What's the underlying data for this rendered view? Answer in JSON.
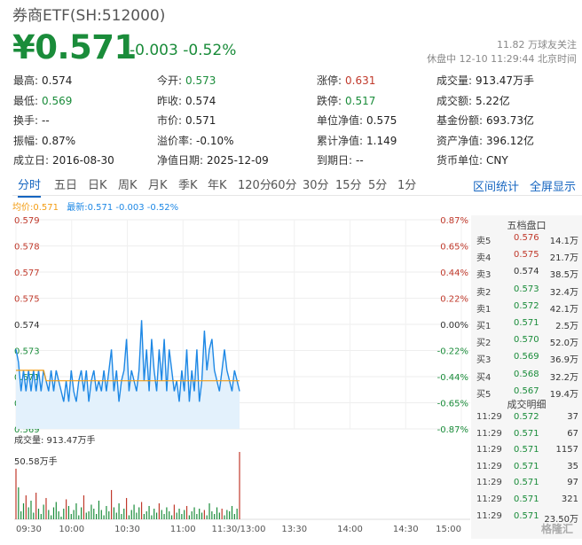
{
  "header": {
    "title": "券商ETF(SH:512000)",
    "price": "¥0.571",
    "change": "-0.003 -0.52%",
    "followers": "11.82 万球友关注",
    "status": "休盘中 12-10 11:29:44 北京时间"
  },
  "stats": {
    "rows": [
      [
        {
          "label": "最高:",
          "value": "0.574",
          "color": ""
        },
        {
          "label": "今开:",
          "value": "0.573",
          "color": "down"
        },
        {
          "label": "涨停:",
          "value": "0.631",
          "color": "up"
        },
        {
          "label": "成交量:",
          "value": "913.47万手",
          "color": ""
        }
      ],
      [
        {
          "label": "最低:",
          "value": "0.569",
          "color": "down"
        },
        {
          "label": "昨收:",
          "value": "0.574",
          "color": ""
        },
        {
          "label": "跌停:",
          "value": "0.517",
          "color": "down"
        },
        {
          "label": "成交额:",
          "value": "5.22亿",
          "color": ""
        }
      ],
      [
        {
          "label": "换手:",
          "value": "--",
          "color": ""
        },
        {
          "label": "市价:",
          "value": "0.571",
          "color": ""
        },
        {
          "label": "单位净值:",
          "value": "0.575",
          "color": ""
        },
        {
          "label": "基金份额:",
          "value": "693.73亿",
          "color": ""
        }
      ],
      [
        {
          "label": "振幅:",
          "value": "0.87%",
          "color": ""
        },
        {
          "label": "溢价率:",
          "value": "-0.10%",
          "color": ""
        },
        {
          "label": "累计净值:",
          "value": "1.149",
          "color": ""
        },
        {
          "label": "资产净值:",
          "value": "396.12亿",
          "color": ""
        }
      ],
      [
        {
          "label": "成立日:",
          "value": "2016-08-30",
          "color": ""
        },
        {
          "label": "净值日期:",
          "value": "2025-12-09",
          "color": ""
        },
        {
          "label": "到期日:",
          "value": "--",
          "color": ""
        },
        {
          "label": "货币单位:",
          "value": "CNY",
          "color": ""
        }
      ]
    ]
  },
  "tabs": [
    "分时",
    "五日",
    "日K",
    "周K",
    "月K",
    "季K",
    "年K",
    "120分",
    "60分",
    "30分",
    "15分",
    "5分",
    "1分"
  ],
  "active_tab": 0,
  "tools": {
    "range_stats": "区间统计",
    "fullscreen": "全屏显示"
  },
  "legend": {
    "avg_label": "均价:",
    "avg_value": "0.571",
    "last_label": "最新:",
    "last_value": "0.571 -0.003 -0.52%"
  },
  "colors": {
    "up": "#c0392b",
    "down": "#1a8c3a",
    "line": "#1e88e5",
    "avg": "#f39c12",
    "link": "#1565c0"
  },
  "chart_data": {
    "type": "line",
    "price_ticks": [
      "0.579",
      "0.578",
      "0.577",
      "0.575",
      "0.574",
      "0.573",
      "0.571",
      "0.570",
      "0.569"
    ],
    "pct_ticks": [
      "0.87%",
      "0.65%",
      "0.44%",
      "0.22%",
      "0.00%",
      "-0.22%",
      "-0.44%",
      "-0.65%",
      "-0.87%"
    ],
    "ylim": [
      0.569,
      0.579
    ],
    "prev_close": 0.574,
    "x_ticks": [
      "09:30",
      "10:00",
      "10:30",
      "11:00",
      "11:30/13:00",
      "13:30",
      "14:00",
      "14:30",
      "15:00"
    ],
    "series": [
      {
        "name": "最新",
        "values": [
          0.5728,
          0.5722,
          0.5708,
          0.5718,
          0.5708,
          0.5718,
          0.5708,
          0.5718,
          0.5708,
          0.5718,
          0.5708,
          0.5718,
          0.5713,
          0.5708,
          0.5718,
          0.5708,
          0.5718,
          0.5713,
          0.5708,
          0.5703,
          0.5713,
          0.5703,
          0.5718,
          0.5708,
          0.5703,
          0.5713,
          0.5718,
          0.5708,
          0.5718,
          0.5703,
          0.5713,
          0.5718,
          0.5708,
          0.5713,
          0.5708,
          0.5718,
          0.5708,
          0.5718,
          0.5728,
          0.5708,
          0.5718,
          0.5703,
          0.5713,
          0.5718,
          0.5733,
          0.5708,
          0.5718,
          0.5713,
          0.5708,
          0.5718,
          0.5742,
          0.5713,
          0.5728,
          0.5708,
          0.5733,
          0.5718,
          0.5708,
          0.5728,
          0.5713,
          0.5733,
          0.5708,
          0.5728,
          0.5718,
          0.5708,
          0.5713,
          0.5703,
          0.5718,
          0.5708,
          0.5728,
          0.5703,
          0.5718,
          0.5708,
          0.5728,
          0.5703,
          0.5713,
          0.5737,
          0.5718,
          0.5728,
          0.5733,
          0.5718,
          0.5713,
          0.5708,
          0.5718,
          0.5728,
          0.5718,
          0.5713,
          0.5708,
          0.5718,
          0.5713,
          0.5708
        ]
      },
      {
        "name": "均价",
        "values": [
          0.5718,
          0.5718,
          0.5718,
          0.5718,
          0.5718,
          0.5718,
          0.5718,
          0.5718,
          0.5718,
          0.5718,
          0.5718,
          0.5718,
          0.5713,
          0.5713,
          0.5713,
          0.5713,
          0.5713,
          0.5713,
          0.5713,
          0.5713,
          0.5713,
          0.5713,
          0.5713,
          0.5713,
          0.5713,
          0.5713,
          0.5713,
          0.5713,
          0.5713,
          0.5713,
          0.5713,
          0.5713,
          0.5713,
          0.5713,
          0.5713,
          0.5713,
          0.5713,
          0.5713,
          0.5713,
          0.5713,
          0.5713,
          0.5713,
          0.5713,
          0.5713,
          0.5713,
          0.5713,
          0.5713,
          0.5713,
          0.5713,
          0.5713,
          0.5713,
          0.5713,
          0.5713,
          0.5713,
          0.5713,
          0.5713,
          0.5713,
          0.5713,
          0.5713,
          0.5713,
          0.5713,
          0.5713,
          0.5713,
          0.5713,
          0.5713,
          0.5713,
          0.5713,
          0.5713,
          0.5713,
          0.5713,
          0.5713,
          0.5713,
          0.5713,
          0.5713,
          0.5713,
          0.5713,
          0.5713,
          0.5713,
          0.5713,
          0.5713,
          0.5713,
          0.5713,
          0.5713,
          0.5713,
          0.5713,
          0.5713,
          0.5713,
          0.5713,
          0.5713,
          0.5713
        ]
      }
    ],
    "volume_label": "成交量: 913.47万手",
    "volume_max_label": "50.58万手",
    "volume_max": 50.58,
    "volume": [
      38,
      24,
      6,
      12,
      18,
      9,
      14,
      5,
      20,
      8,
      4,
      11,
      16,
      7,
      3,
      9,
      13,
      6,
      2,
      8,
      15,
      10,
      4,
      7,
      12,
      3,
      9,
      18,
      5,
      6,
      11,
      8,
      4,
      14,
      7,
      3,
      10,
      6,
      22,
      9,
      5,
      12,
      4,
      8,
      16,
      3,
      7,
      11,
      5,
      9,
      13,
      4,
      6,
      10,
      3,
      8,
      5,
      12,
      7,
      4,
      9,
      6,
      3,
      11,
      5,
      8,
      4,
      7,
      10,
      3,
      6,
      9,
      4,
      8,
      5,
      7,
      3,
      12,
      6,
      4,
      9,
      5,
      8,
      3,
      7,
      6,
      10,
      4,
      8,
      50.58
    ],
    "volume_up_index": [
      0,
      4,
      8,
      12,
      20,
      27,
      38,
      44,
      50,
      57,
      63,
      68,
      75,
      82,
      89
    ]
  },
  "orderbook": {
    "title": "五档盘口",
    "asks": [
      {
        "label": "卖5",
        "price": "0.576",
        "vol": "14.1万",
        "color": "up"
      },
      {
        "label": "卖4",
        "price": "0.575",
        "vol": "21.7万",
        "color": "up"
      },
      {
        "label": "卖3",
        "price": "0.574",
        "vol": "38.5万",
        "color": ""
      },
      {
        "label": "卖2",
        "price": "0.573",
        "vol": "32.4万",
        "color": "down"
      },
      {
        "label": "卖1",
        "price": "0.572",
        "vol": "42.1万",
        "color": "down"
      }
    ],
    "bids": [
      {
        "label": "买1",
        "price": "0.571",
        "vol": "2.5万",
        "color": "down"
      },
      {
        "label": "买2",
        "price": "0.570",
        "vol": "52.0万",
        "color": "down"
      },
      {
        "label": "买3",
        "price": "0.569",
        "vol": "36.9万",
        "color": "down"
      },
      {
        "label": "买4",
        "price": "0.568",
        "vol": "32.2万",
        "color": "down"
      },
      {
        "label": "买5",
        "price": "0.567",
        "vol": "19.4万",
        "color": "down"
      }
    ],
    "trades_title": "成交明细",
    "trades": [
      {
        "time": "11:29",
        "price": "0.572",
        "vol": "37",
        "color": "down"
      },
      {
        "time": "11:29",
        "price": "0.571",
        "vol": "67",
        "color": "down"
      },
      {
        "time": "11:29",
        "price": "0.571",
        "vol": "1157",
        "color": "down"
      },
      {
        "time": "11:29",
        "price": "0.571",
        "vol": "35",
        "color": "down"
      },
      {
        "time": "11:29",
        "price": "0.571",
        "vol": "97",
        "color": "down"
      },
      {
        "time": "11:29",
        "price": "0.571",
        "vol": "321",
        "color": "down"
      },
      {
        "time": "11:29",
        "price": "0.571",
        "vol": "23.50万",
        "color": "down"
      }
    ]
  },
  "watermark": "格隆汇"
}
